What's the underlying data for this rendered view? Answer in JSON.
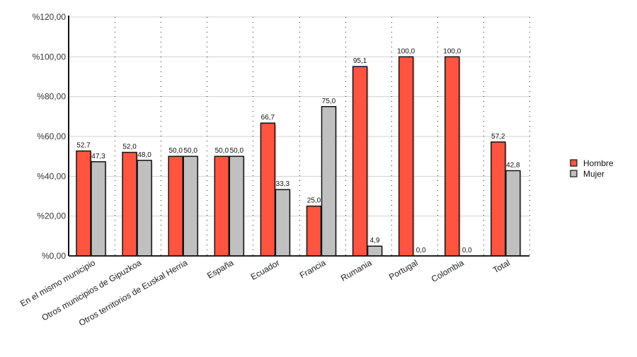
{
  "chart_data": {
    "type": "bar",
    "categories": [
      "En el mismo municipio",
      "Otros municipios de Gipuzkoa",
      "Otros territorios de Euskal Herria",
      "España",
      "Ecuador",
      "Francia",
      "Rumania",
      "Portugal",
      "Colombia",
      "Total"
    ],
    "series": [
      {
        "name": "Hombre",
        "color": "#FF5540",
        "values": [
          52.7,
          52.0,
          50.0,
          50.0,
          66.7,
          25.0,
          95.1,
          100.0,
          100.0,
          57.2
        ],
        "labels": [
          "52,7",
          "52,0",
          "50,0",
          "50,0",
          "66,7",
          "25,0",
          "95,1",
          "100,0",
          "100,0",
          "57,2"
        ]
      },
      {
        "name": "Mujer",
        "color": "#C0C0C0",
        "values": [
          47.3,
          48.0,
          50.0,
          50.0,
          33.3,
          75.0,
          4.9,
          0.0,
          0.0,
          42.8
        ],
        "labels": [
          "47,3",
          "48,0",
          "50,0",
          "50,0",
          "33,3",
          "75,0",
          "4,9",
          "0,0",
          "0,0",
          "42,8"
        ]
      }
    ],
    "ylim": [
      0,
      120
    ],
    "yticks": [
      0,
      20,
      40,
      60,
      80,
      100,
      120
    ],
    "ytick_labels": [
      "%0,00",
      "%20,00",
      "%40,00",
      "%60,00",
      "%80,00",
      "%100,00",
      "%120,00"
    ],
    "grid": true,
    "legend_position": "right"
  }
}
